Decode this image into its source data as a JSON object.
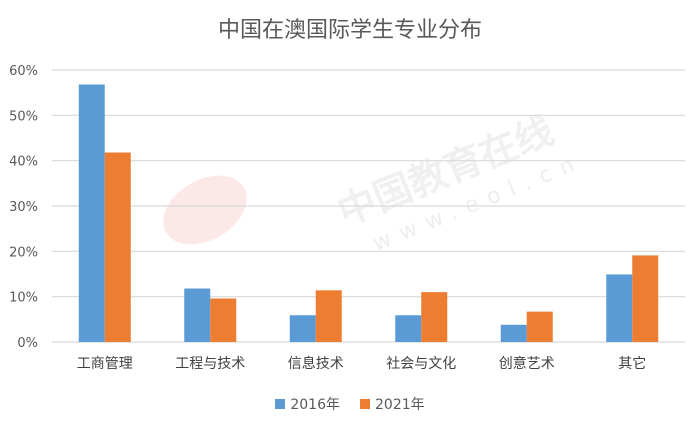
{
  "chart_data": {
    "type": "bar",
    "title": "中国在澳国际学生专业分布",
    "categories": [
      "工商管理",
      "工程与技术",
      "信息技术",
      "社会与文化",
      "创意艺术",
      "其它"
    ],
    "series": [
      {
        "name": "2016年",
        "color": "#5B9BD5",
        "values": [
          56.8,
          11.8,
          5.9,
          5.9,
          3.8,
          14.9
        ]
      },
      {
        "name": "2021年",
        "color": "#ED7D31",
        "values": [
          41.8,
          9.6,
          11.4,
          11.0,
          6.7,
          19.1
        ]
      }
    ],
    "ylim": [
      0,
      60
    ],
    "yticks": [
      "0%",
      "10%",
      "20%",
      "30%",
      "40%",
      "50%",
      "60%"
    ],
    "grid": true,
    "legend": "bottom",
    "watermark": "中国教育在线 www.eol.cn"
  }
}
